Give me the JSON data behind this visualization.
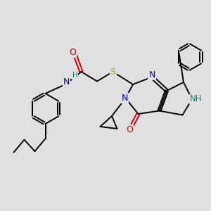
{
  "bg_color": "#e0e0e0",
  "bond_color": "#000000",
  "bond_width": 1.4,
  "atom_colors": {
    "N": "#0000cc",
    "O": "#cc0000",
    "S": "#aaaa00",
    "NH": "#008080",
    "C": "#000000"
  },
  "font_size": 8.0
}
